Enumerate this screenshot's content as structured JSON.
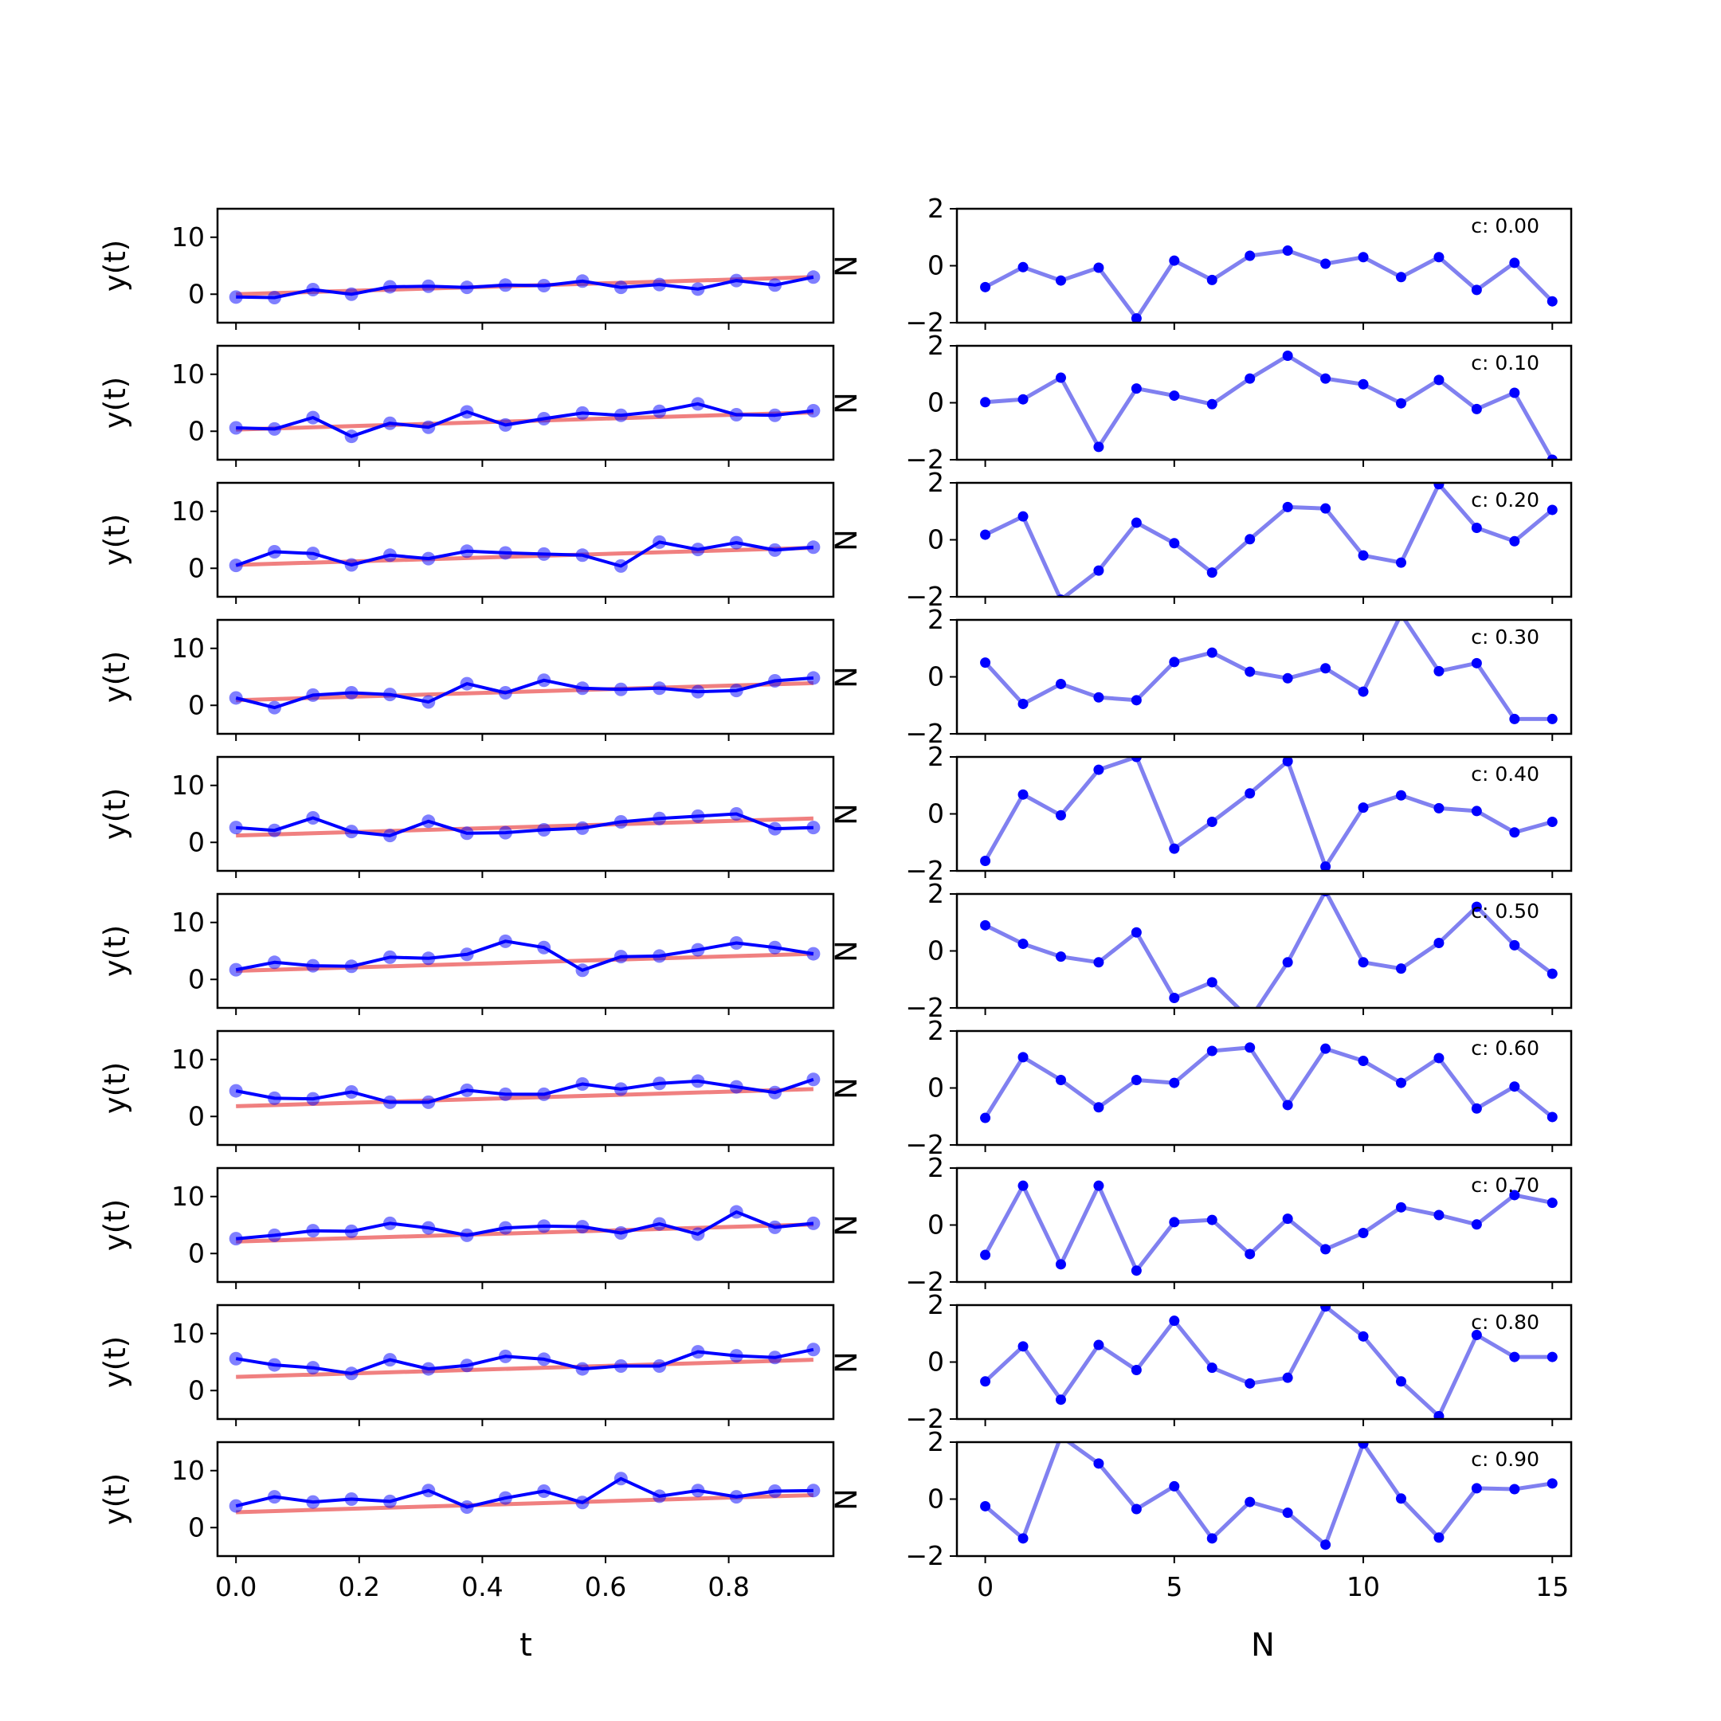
{
  "chart_data": {
    "type": "line",
    "columns": [
      {
        "xlabel": "t",
        "ylabel": "y(t)",
        "x_ticks": [
          "0.0",
          "0.2",
          "0.4",
          "0.6",
          "0.8"
        ],
        "y_ticks": [
          "0",
          "10"
        ],
        "xlim": [
          -0.03,
          0.97
        ],
        "ylim": [
          -5,
          15
        ]
      },
      {
        "xlabel": "N",
        "ylabel": "N",
        "x_ticks": [
          "0",
          "5",
          "10",
          "15"
        ],
        "y_ticks": [
          "−2",
          "0",
          "2"
        ],
        "xlim": [
          -0.75,
          15.5
        ],
        "ylim": [
          -2,
          2
        ]
      }
    ],
    "t": [
      0,
      0.0625,
      0.125,
      0.1875,
      0.25,
      0.3125,
      0.375,
      0.4375,
      0.5,
      0.5625,
      0.625,
      0.6875,
      0.75,
      0.8125,
      0.875,
      0.9375
    ],
    "n": [
      0,
      1,
      2,
      3,
      4,
      5,
      6,
      7,
      8,
      9,
      10,
      11,
      12,
      13,
      14,
      15
    ],
    "rows": [
      {
        "label": "c: 0.00",
        "trend": [
          0,
          3
        ],
        "y": [
          -0.5,
          -0.6,
          0.8,
          0.0,
          1.3,
          1.4,
          1.2,
          1.6,
          1.5,
          2.3,
          1.2,
          1.7,
          0.9,
          2.4,
          1.6,
          3.0
        ],
        "noise": [
          -0.75,
          -0.05,
          -0.52,
          -0.07,
          -1.85,
          0.18,
          -0.5,
          0.35,
          0.53,
          0.07,
          0.3,
          -0.4,
          0.3,
          -0.85,
          0.1,
          -1.25
        ]
      },
      {
        "label": "c: 0.10",
        "trend": [
          0.3,
          3.3
        ],
        "y": [
          0.6,
          0.4,
          2.4,
          -0.9,
          1.4,
          0.7,
          3.4,
          1.1,
          2.2,
          3.2,
          2.8,
          3.5,
          4.8,
          2.9,
          2.8,
          3.6
        ],
        "noise": [
          0.02,
          0.12,
          0.88,
          -1.55,
          0.5,
          0.25,
          -0.05,
          0.85,
          1.65,
          0.85,
          0.65,
          -0.02,
          0.8,
          -0.22,
          0.35,
          -2.0
        ]
      },
      {
        "label": "c: 0.20",
        "trend": [
          0.6,
          3.6
        ],
        "y": [
          0.5,
          2.9,
          2.6,
          0.6,
          2.3,
          1.7,
          3.0,
          2.7,
          2.5,
          2.3,
          0.4,
          4.6,
          3.3,
          4.5,
          3.2,
          3.7
        ],
        "noise": [
          0.18,
          0.82,
          -2.1,
          -1.08,
          0.6,
          -0.12,
          -1.15,
          0.02,
          1.15,
          1.1,
          -0.55,
          -0.8,
          1.95,
          0.42,
          -0.05,
          1.05
        ]
      },
      {
        "label": "c: 0.30",
        "trend": [
          0.9,
          3.9
        ],
        "y": [
          1.3,
          -0.4,
          1.8,
          2.2,
          1.9,
          0.6,
          3.8,
          2.2,
          4.4,
          3.0,
          2.8,
          3.0,
          2.4,
          2.6,
          4.3,
          4.8
        ],
        "noise": [
          0.5,
          -0.95,
          -0.25,
          -0.72,
          -0.82,
          0.52,
          0.85,
          0.18,
          -0.05,
          0.3,
          -0.52,
          2.2,
          0.2,
          0.48,
          -1.48,
          -1.48
        ]
      },
      {
        "label": "c: 0.40",
        "trend": [
          1.2,
          4.2
        ],
        "y": [
          2.6,
          2.1,
          4.3,
          1.9,
          1.2,
          3.7,
          1.6,
          1.7,
          2.2,
          2.5,
          3.6,
          4.2,
          4.6,
          5.0,
          2.4,
          2.6
        ],
        "noise": [
          -1.65,
          0.68,
          -0.05,
          1.55,
          2.0,
          -1.22,
          -0.28,
          0.72,
          1.85,
          -1.85,
          0.22,
          0.65,
          0.2,
          0.1,
          -0.65,
          -0.28
        ]
      },
      {
        "label": "c: 0.50",
        "trend": [
          1.5,
          4.5
        ],
        "y": [
          1.7,
          3.0,
          2.4,
          2.3,
          3.9,
          3.7,
          4.4,
          6.7,
          5.6,
          1.6,
          4.0,
          4.1,
          5.2,
          6.4,
          5.6,
          4.5
        ],
        "noise": [
          0.9,
          0.25,
          -0.2,
          -0.4,
          0.65,
          -1.65,
          -1.1,
          -2.4,
          -0.4,
          2.1,
          -0.4,
          -0.62,
          0.28,
          1.55,
          0.2,
          -0.8
        ]
      },
      {
        "label": "c: 0.60",
        "trend": [
          1.8,
          4.8
        ],
        "y": [
          4.5,
          3.2,
          3.1,
          4.3,
          2.5,
          2.5,
          4.6,
          3.9,
          3.9,
          5.7,
          4.8,
          5.8,
          6.2,
          5.2,
          4.2,
          6.5
        ],
        "noise": [
          -1.05,
          1.08,
          0.28,
          -0.68,
          0.28,
          0.18,
          1.3,
          1.42,
          -0.6,
          1.38,
          0.95,
          0.18,
          1.05,
          -0.72,
          0.05,
          -1.02
        ]
      },
      {
        "label": "c: 0.70",
        "trend": [
          2.1,
          5.1
        ],
        "y": [
          2.6,
          3.2,
          4.0,
          3.9,
          5.3,
          4.5,
          3.2,
          4.5,
          4.8,
          4.7,
          3.6,
          5.2,
          3.4,
          7.3,
          4.6,
          5.3
        ],
        "noise": [
          -1.05,
          1.38,
          -1.38,
          1.38,
          -1.6,
          0.1,
          0.18,
          -1.02,
          0.22,
          -0.85,
          -0.28,
          0.62,
          0.35,
          0.02,
          1.05,
          0.78
        ]
      },
      {
        "label": "c: 0.80",
        "trend": [
          2.4,
          5.4
        ],
        "y": [
          5.6,
          4.5,
          4.0,
          3.0,
          5.4,
          3.8,
          4.4,
          6.0,
          5.5,
          3.8,
          4.3,
          4.3,
          6.8,
          6.1,
          5.8,
          7.2
        ],
        "noise": [
          -0.68,
          0.55,
          -1.32,
          0.6,
          -0.28,
          1.45,
          -0.2,
          -0.75,
          -0.55,
          1.95,
          0.9,
          -0.68,
          -1.9,
          0.95,
          0.18,
          0.18
        ]
      },
      {
        "label": "c: 0.90",
        "trend": [
          2.7,
          5.7
        ],
        "y": [
          3.8,
          5.4,
          4.5,
          5.0,
          4.6,
          6.5,
          3.6,
          5.2,
          6.4,
          4.4,
          8.6,
          5.5,
          6.5,
          5.4,
          6.4,
          6.5
        ],
        "noise": [
          -0.25,
          -1.38,
          2.2,
          1.25,
          -0.35,
          0.45,
          -1.38,
          -0.1,
          -0.48,
          -1.6,
          1.95,
          0.02,
          -1.35,
          0.38,
          0.35,
          0.55
        ]
      }
    ],
    "colors": {
      "points": "#0000ff",
      "trend": "#f08080",
      "noise_line": "#8080f0",
      "line": "#0000ff"
    }
  }
}
